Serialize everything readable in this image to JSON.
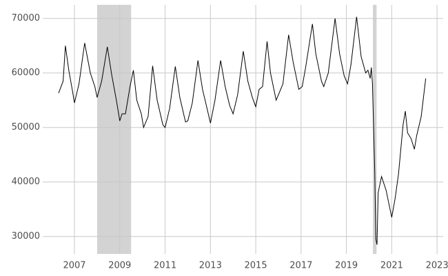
{
  "chart_data": {
    "type": "line",
    "x": [
      2006.3,
      2006.5,
      2006.6,
      2006.75,
      2006.9,
      2007.0,
      2007.2,
      2007.45,
      2007.7,
      2007.9,
      2008.0,
      2008.2,
      2008.45,
      2008.65,
      2008.85,
      2009.0,
      2009.1,
      2009.25,
      2009.45,
      2009.6,
      2009.75,
      2009.95,
      2010.05,
      2010.25,
      2010.45,
      2010.65,
      2010.9,
      2011.0,
      2011.2,
      2011.45,
      2011.65,
      2011.9,
      2012.0,
      2012.2,
      2012.45,
      2012.65,
      2012.85,
      2013.0,
      2013.2,
      2013.45,
      2013.65,
      2013.85,
      2014.0,
      2014.2,
      2014.45,
      2014.65,
      2014.85,
      2015.0,
      2015.15,
      2015.3,
      2015.5,
      2015.65,
      2015.9,
      2016.05,
      2016.2,
      2016.45,
      2016.65,
      2016.9,
      2017.05,
      2017.2,
      2017.5,
      2017.65,
      2017.9,
      2018.0,
      2018.2,
      2018.5,
      2018.7,
      2018.9,
      2019.05,
      2019.2,
      2019.45,
      2019.65,
      2019.85,
      2019.95,
      2020.05,
      2020.1,
      2020.15,
      2020.25,
      2020.3,
      2020.35,
      2020.4,
      2020.55,
      2020.75,
      2020.95,
      2021.0,
      2021.15,
      2021.3,
      2021.5,
      2021.6,
      2021.7,
      2021.85,
      2022.0,
      2022.1,
      2022.3,
      2022.5
    ],
    "series": [
      {
        "color": "#000000",
        "values": [
          56300,
          58500,
          65000,
          60500,
          57000,
          54500,
          58000,
          65500,
          60000,
          57500,
          55500,
          58500,
          64800,
          59500,
          55000,
          51200,
          52500,
          52500,
          57500,
          60500,
          55000,
          52500,
          50000,
          52000,
          61300,
          55000,
          50500,
          50000,
          53500,
          61200,
          55500,
          51000,
          51200,
          54500,
          62300,
          57000,
          53500,
          50800,
          55000,
          62300,
          57500,
          54000,
          52500,
          56000,
          64000,
          58500,
          55500,
          53800,
          57000,
          57500,
          65800,
          60000,
          55000,
          56500,
          58000,
          67000,
          62000,
          57000,
          57500,
          61000,
          69000,
          63500,
          58500,
          57500,
          60000,
          70000,
          63500,
          59500,
          58000,
          61500,
          70300,
          63000,
          60000,
          60500,
          59000,
          61000,
          58000,
          42000,
          29500,
          28500,
          38000,
          41000,
          38500,
          34500,
          33500,
          37000,
          41500,
          50500,
          53000,
          49000,
          48000,
          46000,
          48500,
          52000,
          59000
        ]
      }
    ],
    "shaded_periods": [
      [
        2008.0,
        2009.5
      ],
      [
        2020.17,
        2020.33
      ]
    ],
    "shade_color": "#d3d3d3",
    "xlim": [
      2005.6,
      2023.27
    ],
    "xticks": [
      2007,
      2009,
      2011,
      2013,
      2015,
      2017,
      2019,
      2021,
      2023
    ],
    "ylim": [
      26800,
      72500
    ],
    "yticks": [
      30000,
      40000,
      50000,
      60000,
      70000
    ],
    "grid": true
  }
}
